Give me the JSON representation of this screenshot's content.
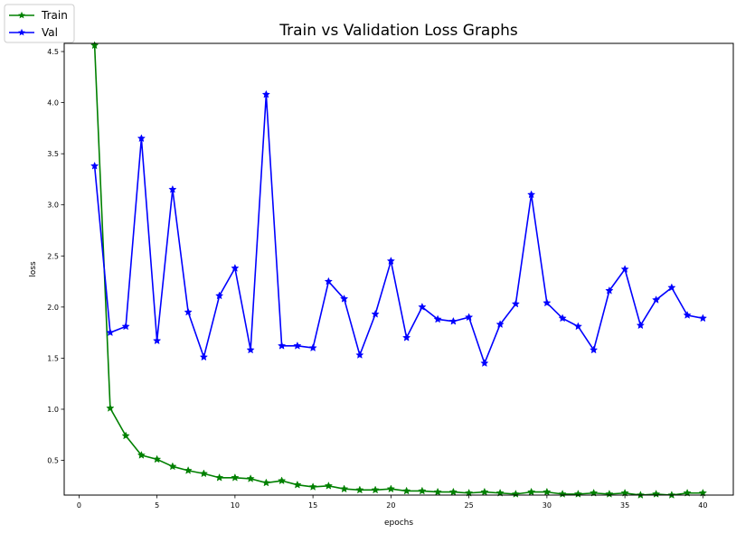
{
  "chart_data": {
    "type": "line",
    "title": "Train vs Validation Loss Graphs",
    "xlabel": "epochs",
    "ylabel": "loss",
    "xlim": [
      -0.95,
      41.95
    ],
    "ylim": [
      0.16,
      4.58
    ],
    "xticks": [
      0,
      5,
      10,
      15,
      20,
      25,
      30,
      35,
      40
    ],
    "yticks": [
      0.5,
      1.0,
      1.5,
      2.0,
      2.5,
      3.0,
      3.5,
      4.0,
      4.5
    ],
    "ytick_labels": [
      "0.5",
      "1.0",
      "1.5",
      "2.0",
      "2.5",
      "3.0",
      "3.5",
      "4.0",
      "4.5"
    ],
    "grid": false,
    "legend_position": "top-left",
    "marker": "star",
    "x": [
      1,
      2,
      3,
      4,
      5,
      6,
      7,
      8,
      9,
      10,
      11,
      12,
      13,
      14,
      15,
      16,
      17,
      18,
      19,
      20,
      21,
      22,
      23,
      24,
      25,
      26,
      27,
      28,
      29,
      30,
      31,
      32,
      33,
      34,
      35,
      36,
      37,
      38,
      39,
      40
    ],
    "series": [
      {
        "name": "Train",
        "color": "#008000",
        "values": [
          4.56,
          1.01,
          0.74,
          0.55,
          0.51,
          0.44,
          0.4,
          0.37,
          0.33,
          0.33,
          0.32,
          0.28,
          0.3,
          0.26,
          0.24,
          0.25,
          0.22,
          0.21,
          0.21,
          0.22,
          0.2,
          0.2,
          0.19,
          0.19,
          0.18,
          0.19,
          0.18,
          0.17,
          0.19,
          0.19,
          0.17,
          0.17,
          0.18,
          0.17,
          0.18,
          0.16,
          0.17,
          0.16,
          0.18,
          0.18
        ]
      },
      {
        "name": "Val",
        "color": "#0000ff",
        "values": [
          3.38,
          1.75,
          1.81,
          3.65,
          1.67,
          3.15,
          1.95,
          1.51,
          2.11,
          2.38,
          1.58,
          4.08,
          1.62,
          1.62,
          1.6,
          2.25,
          2.08,
          1.53,
          1.93,
          2.45,
          1.7,
          2.0,
          1.88,
          1.86,
          1.9,
          1.45,
          1.83,
          2.03,
          3.1,
          2.04,
          1.89,
          1.81,
          1.58,
          2.16,
          2.37,
          1.82,
          2.07,
          2.19,
          1.92,
          1.89
        ]
      }
    ]
  }
}
